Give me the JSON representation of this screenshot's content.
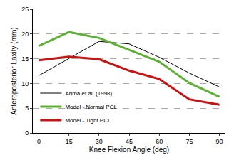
{
  "chart_data": {
    "type": "line",
    "x_label": "Knee Flexion Angle (deg)",
    "y_label": "Anteroposterior Laxity (mm)",
    "x": [
      0,
      15,
      30,
      45,
      60,
      75,
      90
    ],
    "series": [
      {
        "name": "Arima et al. (1998)",
        "color": "#000000",
        "values": [
          11.6,
          15.0,
          18.5,
          18.0,
          15.3,
          12.1,
          9.3
        ]
      },
      {
        "name": "Model - Normal PCL",
        "color": "#5db233",
        "values": [
          17.6,
          20.4,
          19.2,
          16.8,
          14.4,
          10.1,
          7.3
        ]
      },
      {
        "name": "Model - Tight PCL",
        "color": "#cc1111",
        "values": [
          14.7,
          15.4,
          14.9,
          12.6,
          10.9,
          6.8,
          5.7
        ]
      }
    ],
    "xlim": [
      -3,
      93
    ],
    "xticks": [
      0,
      15,
      30,
      45,
      60,
      75,
      90
    ],
    "ylim": [
      0,
      25
    ],
    "yticks": [
      0,
      5,
      10,
      15,
      20,
      25
    ],
    "grid": true,
    "legend": "lower left"
  }
}
